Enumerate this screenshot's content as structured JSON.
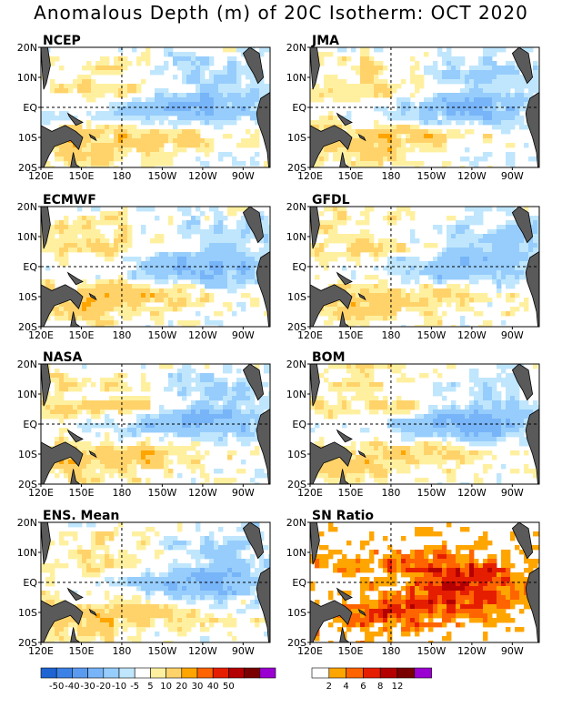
{
  "title": "Anomalous Depth (m) of 20C Isotherm: OCT 2020",
  "chart_data": {
    "type": "heatmap",
    "title": "Anomalous Depth (m) of 20C Isotherm: OCT 2020",
    "x_ticks": [
      "120E",
      "150E",
      "180",
      "150W",
      "120W",
      "90W"
    ],
    "y_ticks": [
      "20N",
      "10N",
      "EQ",
      "10S",
      "20S"
    ],
    "panels": [
      {
        "name": "NCEP",
        "scale": "anomaly"
      },
      {
        "name": "JMA",
        "scale": "anomaly"
      },
      {
        "name": "ECMWF",
        "scale": "anomaly"
      },
      {
        "name": "GFDL",
        "scale": "anomaly"
      },
      {
        "name": "NASA",
        "scale": "anomaly"
      },
      {
        "name": "BOM",
        "scale": "anomaly"
      },
      {
        "name": "ENS. Mean",
        "scale": "anomaly"
      },
      {
        "name": "SN Ratio",
        "scale": "snr"
      }
    ],
    "anomaly_colorbar": {
      "labels": [
        "-50",
        "-40",
        "-30",
        "-20",
        "-10",
        "-5",
        "5",
        "10",
        "20",
        "30",
        "40",
        "50"
      ],
      "colors": [
        "#1e64d2",
        "#3c82e6",
        "#5a9bf0",
        "#78b4f8",
        "#96cdfc",
        "#bfe6fd",
        "#ffffff",
        "#fff0a0",
        "#ffd36a",
        "#ffa500",
        "#ff6400",
        "#e61e00",
        "#b40000",
        "#7a0000",
        "#9b00d2"
      ]
    },
    "snr_colorbar": {
      "labels": [
        "2",
        "4",
        "6",
        "8",
        "12"
      ],
      "colors": [
        "#ffffff",
        "#ffa500",
        "#ff6400",
        "#e61e00",
        "#b40000",
        "#7a0000",
        "#9b00d2"
      ]
    },
    "land_color": "#5a5a5a",
    "grid_lines": [
      "EQ",
      "180"
    ]
  }
}
